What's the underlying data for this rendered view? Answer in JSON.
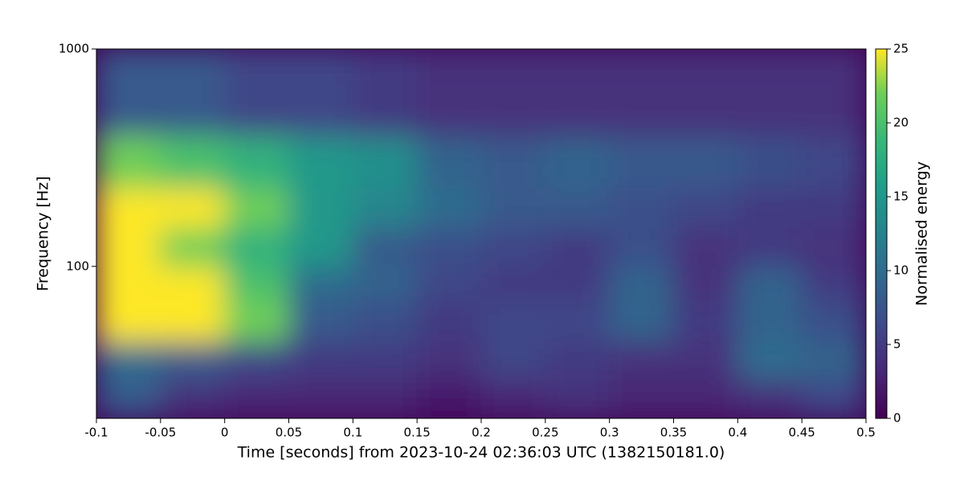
{
  "chart_data": {
    "type": "heatmap",
    "xlabel": "Time [seconds] from 2023-10-24 02:36:03 UTC (1382150181.0)",
    "ylabel": "Frequency [Hz]",
    "colorbar_label": "Normalised energy",
    "colormap": "viridis",
    "yscale": "log",
    "xlim": [
      -0.1,
      0.5
    ],
    "xticks": [
      -0.1,
      -0.05,
      0,
      0.05,
      0.1,
      0.15,
      0.2,
      0.25,
      0.3,
      0.35,
      0.4,
      0.45,
      0.5
    ],
    "ylim": [
      20,
      1000
    ],
    "yticks": [
      100,
      1000
    ],
    "clim": [
      0,
      25
    ],
    "cticks": [
      0,
      5,
      10,
      15,
      20,
      25
    ],
    "xbins": [
      -0.1,
      -0.05,
      0,
      0.05,
      0.1,
      0.15,
      0.2,
      0.25,
      0.3,
      0.35,
      0.4,
      0.45,
      0.5
    ],
    "ybins": [
      20,
      30,
      45,
      70,
      100,
      150,
      230,
      400,
      1000
    ],
    "z": [
      [
        8,
        4,
        3,
        3,
        3,
        2,
        3,
        4,
        3,
        3,
        4,
        6
      ],
      [
        10,
        8,
        6,
        5,
        5,
        4,
        6,
        5,
        4,
        4,
        10,
        9
      ],
      [
        25,
        25,
        22,
        8,
        7,
        5,
        6,
        6,
        9,
        5,
        9,
        7
      ],
      [
        25,
        25,
        20,
        10,
        9,
        6,
        5,
        5,
        9,
        4,
        9,
        5
      ],
      [
        25,
        22,
        18,
        15,
        8,
        7,
        6,
        5,
        7,
        4,
        5,
        4
      ],
      [
        25,
        25,
        22,
        15,
        13,
        10,
        8,
        8,
        7,
        6,
        5,
        5
      ],
      [
        22,
        20,
        18,
        15,
        14,
        9,
        8,
        9,
        8,
        8,
        7,
        6
      ],
      [
        8,
        8,
        6,
        6,
        5,
        4,
        4,
        4,
        4,
        4,
        4,
        4
      ]
    ]
  }
}
